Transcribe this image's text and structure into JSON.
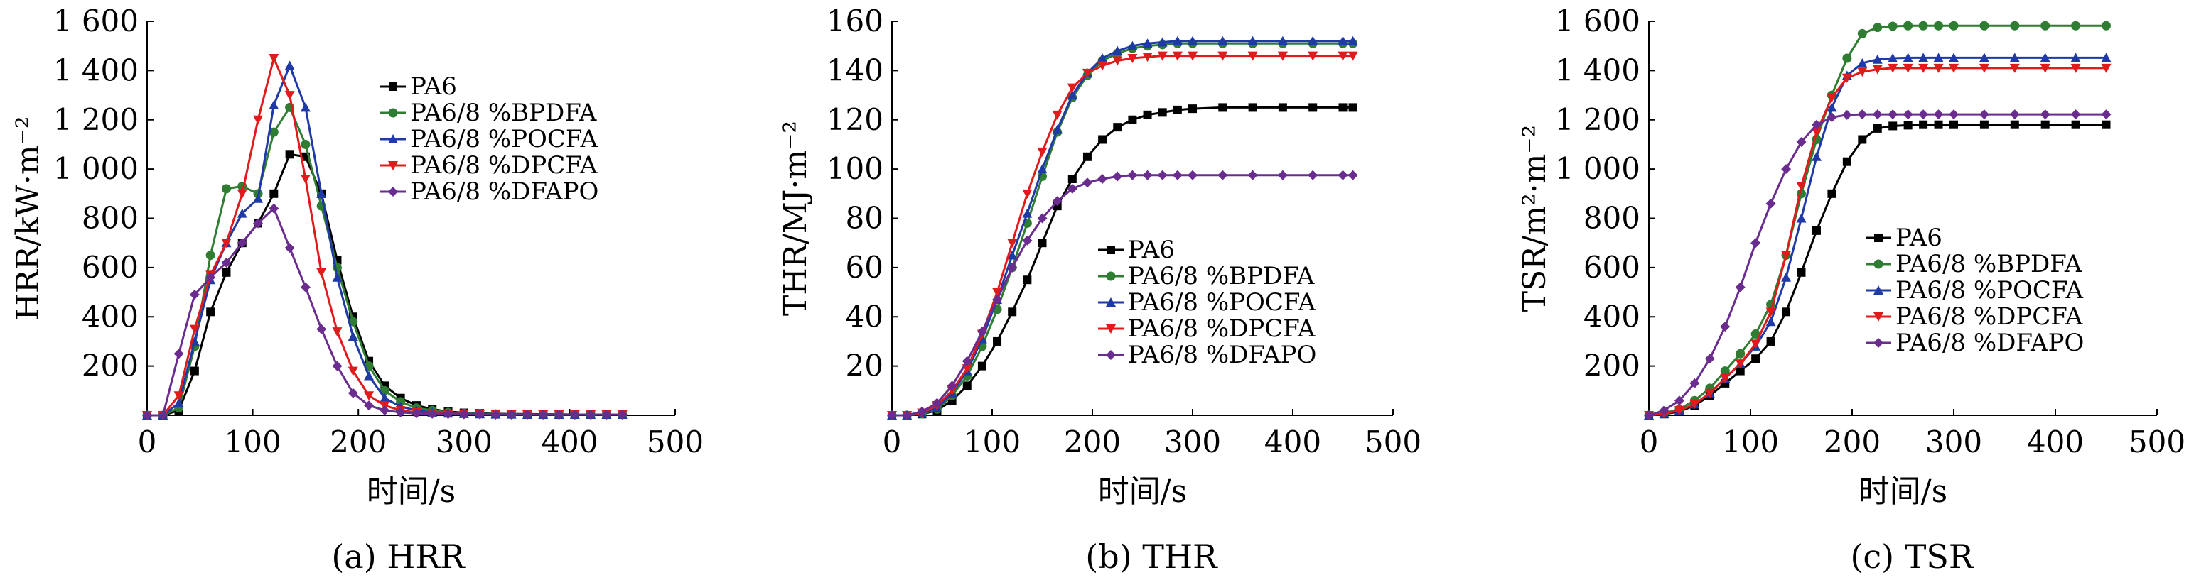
{
  "colors": {
    "PA6": "#000000",
    "BPDFA": "#2e7d32",
    "POCFA": "#1f3aa6",
    "DPCFA": "#e11b1b",
    "DFAPO": "#6a2c8f"
  },
  "chart_data": [
    {
      "type": "line",
      "caption": "(a) HRR",
      "xlabel": "时间/s",
      "ylabel": "HRR/kW·m⁻²",
      "xlim": [
        0,
        500
      ],
      "ylim": [
        0,
        1600
      ],
      "xticks": [
        0,
        100,
        200,
        300,
        400,
        500
      ],
      "xtick_labels": [
        "0",
        "100",
        "200",
        "300",
        "400",
        "500"
      ],
      "yticks": [
        200,
        400,
        600,
        800,
        1000,
        1200,
        1400,
        1600
      ],
      "ytick_labels": [
        "200",
        "400",
        "600",
        "800",
        "1 000",
        "1 200",
        "1 400",
        "1 600"
      ],
      "legend": "upper-right",
      "series": [
        {
          "name": "PA6",
          "marker": "square",
          "color_key": "PA6",
          "x": [
            0,
            15,
            30,
            45,
            60,
            75,
            90,
            105,
            120,
            135,
            150,
            165,
            180,
            195,
            210,
            225,
            240,
            255,
            270,
            285,
            300,
            315,
            330,
            345,
            360,
            375,
            390,
            405,
            420,
            435,
            450
          ],
          "y": [
            0,
            0,
            20,
            180,
            420,
            580,
            700,
            780,
            900,
            1060,
            1050,
            900,
            630,
            400,
            220,
            120,
            70,
            40,
            25,
            15,
            10,
            8,
            6,
            5,
            5,
            4,
            4,
            3,
            3,
            3,
            3
          ]
        },
        {
          "name": "PA6/8 %BPDFA",
          "marker": "circle",
          "color_key": "BPDFA",
          "x": [
            0,
            15,
            30,
            45,
            60,
            75,
            90,
            105,
            120,
            135,
            150,
            165,
            180,
            195,
            210,
            225,
            240,
            255,
            270,
            285,
            300,
            315,
            330,
            345,
            360,
            375,
            390,
            405,
            420,
            435,
            450
          ],
          "y": [
            0,
            0,
            30,
            280,
            650,
            920,
            930,
            900,
            1150,
            1250,
            1100,
            850,
            600,
            380,
            200,
            100,
            55,
            30,
            20,
            12,
            8,
            6,
            5,
            4,
            4,
            3,
            3,
            3,
            3,
            3,
            3
          ]
        },
        {
          "name": "PA6/8 %POCFA",
          "marker": "triangle",
          "color_key": "POCFA",
          "x": [
            0,
            15,
            30,
            45,
            60,
            75,
            90,
            105,
            120,
            135,
            150,
            165,
            180,
            195,
            210,
            225,
            240,
            255,
            270,
            285,
            300,
            315,
            330,
            345,
            360,
            375,
            390,
            405,
            420,
            435,
            450
          ],
          "y": [
            0,
            0,
            50,
            300,
            550,
            700,
            820,
            880,
            1260,
            1420,
            1250,
            900,
            560,
            320,
            160,
            70,
            35,
            20,
            12,
            8,
            6,
            5,
            4,
            4,
            3,
            3,
            3,
            3,
            3,
            3,
            3
          ]
        },
        {
          "name": "PA6/8 %DPCFA",
          "marker": "triangle-down",
          "color_key": "DPCFA",
          "x": [
            0,
            15,
            30,
            45,
            60,
            75,
            90,
            105,
            120,
            135,
            150,
            165,
            180,
            195,
            210,
            225,
            240,
            255,
            270,
            285,
            300,
            315,
            330,
            345,
            360,
            375,
            390,
            405,
            420,
            435,
            450
          ],
          "y": [
            0,
            0,
            80,
            350,
            570,
            700,
            900,
            1200,
            1450,
            1300,
            960,
            580,
            340,
            180,
            80,
            40,
            20,
            12,
            8,
            6,
            5,
            4,
            4,
            3,
            3,
            3,
            3,
            3,
            3,
            3,
            3
          ]
        },
        {
          "name": "PA6/8 %DFAPO",
          "marker": "diamond",
          "color_key": "DFAPO",
          "x": [
            0,
            15,
            30,
            45,
            60,
            75,
            90,
            105,
            120,
            135,
            150,
            165,
            180,
            195,
            210,
            225,
            240,
            255,
            270,
            285,
            300,
            315,
            330,
            345,
            360,
            375,
            390,
            405,
            420,
            435,
            450
          ],
          "y": [
            0,
            0,
            250,
            490,
            560,
            620,
            700,
            780,
            840,
            680,
            520,
            350,
            200,
            90,
            40,
            20,
            12,
            8,
            6,
            5,
            4,
            4,
            3,
            3,
            3,
            3,
            3,
            3,
            3,
            3,
            3
          ]
        }
      ]
    },
    {
      "type": "line",
      "caption": "(b) THR",
      "xlabel": "时间/s",
      "ylabel": "THR/MJ·m⁻²",
      "xlim": [
        0,
        500
      ],
      "ylim": [
        0,
        160
      ],
      "xticks": [
        0,
        100,
        200,
        300,
        400,
        500
      ],
      "xtick_labels": [
        "0",
        "100",
        "200",
        "300",
        "400",
        "500"
      ],
      "yticks": [
        20,
        40,
        60,
        80,
        100,
        120,
        140,
        160
      ],
      "ytick_labels": [
        "20",
        "40",
        "60",
        "80",
        "100",
        "120",
        "140",
        "160"
      ],
      "legend": "lower-right",
      "series": [
        {
          "name": "PA6",
          "marker": "square",
          "color_key": "PA6",
          "x": [
            0,
            15,
            30,
            45,
            60,
            75,
            90,
            105,
            120,
            135,
            150,
            165,
            180,
            195,
            210,
            225,
            240,
            255,
            270,
            285,
            300,
            330,
            360,
            390,
            420,
            450,
            460
          ],
          "y": [
            0,
            0,
            0.5,
            2,
            6,
            12,
            20,
            30,
            42,
            55,
            70,
            85,
            96,
            105,
            112,
            117,
            120,
            122,
            123,
            124,
            124.5,
            125,
            125,
            125,
            125,
            125,
            125
          ]
        },
        {
          "name": "PA6/8 %BPDFA",
          "marker": "circle",
          "color_key": "BPDFA",
          "x": [
            0,
            15,
            30,
            45,
            60,
            75,
            90,
            105,
            120,
            135,
            150,
            165,
            180,
            195,
            210,
            225,
            240,
            255,
            270,
            285,
            300,
            330,
            360,
            390,
            420,
            450,
            460
          ],
          "y": [
            0,
            0,
            0.6,
            2.5,
            8,
            16,
            28,
            43,
            60,
            78,
            97,
            115,
            129,
            138,
            144,
            147,
            149,
            150,
            150.5,
            151,
            151,
            151,
            151,
            151,
            151,
            151,
            151
          ]
        },
        {
          "name": "PA6/8 %POCFA",
          "marker": "triangle",
          "color_key": "POCFA",
          "x": [
            0,
            15,
            30,
            45,
            60,
            75,
            90,
            105,
            120,
            135,
            150,
            165,
            180,
            195,
            210,
            225,
            240,
            255,
            270,
            285,
            300,
            330,
            360,
            390,
            420,
            450,
            460
          ],
          "y": [
            0,
            0,
            0.8,
            3,
            9,
            18,
            31,
            47,
            65,
            82,
            100,
            116,
            130,
            139,
            145,
            148,
            150,
            151,
            151.5,
            152,
            152,
            152,
            152,
            152,
            152,
            152,
            152
          ]
        },
        {
          "name": "PA6/8 %DPCFA",
          "marker": "triangle-down",
          "color_key": "DPCFA",
          "x": [
            0,
            15,
            30,
            45,
            60,
            75,
            90,
            105,
            120,
            135,
            150,
            165,
            180,
            195,
            210,
            225,
            240,
            255,
            270,
            285,
            300,
            330,
            360,
            390,
            420,
            450,
            460
          ],
          "y": [
            0,
            0,
            1,
            4,
            10,
            19,
            33,
            50,
            70,
            90,
            107,
            122,
            133,
            139,
            142,
            144,
            145,
            145.5,
            146,
            146,
            146,
            146,
            146,
            146,
            146,
            146,
            146
          ]
        },
        {
          "name": "PA6/8 %DFAPO",
          "marker": "diamond",
          "color_key": "DFAPO",
          "x": [
            0,
            15,
            30,
            45,
            60,
            75,
            90,
            105,
            120,
            135,
            150,
            165,
            180,
            195,
            210,
            225,
            240,
            255,
            270,
            285,
            300,
            330,
            360,
            390,
            420,
            450,
            460
          ],
          "y": [
            0,
            0,
            1.5,
            5,
            12,
            22,
            34,
            47,
            60,
            71,
            80,
            87,
            92,
            94.5,
            96,
            97,
            97.5,
            97.5,
            97.5,
            97.5,
            97.5,
            97.5,
            97.5,
            97.5,
            97.5,
            97.5,
            97.5
          ]
        }
      ]
    },
    {
      "type": "line",
      "caption": "(c) TSR",
      "xlabel": "时间/s",
      "ylabel": "TSR/m²·m⁻²",
      "xlim": [
        0,
        500
      ],
      "ylim": [
        0,
        1600
      ],
      "xticks": [
        0,
        100,
        200,
        300,
        400,
        500
      ],
      "xtick_labels": [
        "0",
        "100",
        "200",
        "300",
        "400",
        "500"
      ],
      "yticks": [
        200,
        400,
        600,
        800,
        1000,
        1200,
        1400,
        1600
      ],
      "ytick_labels": [
        "200",
        "400",
        "600",
        "800",
        "1 000",
        "1 200",
        "1 400",
        "1 600"
      ],
      "legend": "lower-right",
      "series": [
        {
          "name": "PA6",
          "marker": "square",
          "color_key": "PA6",
          "x": [
            0,
            15,
            30,
            45,
            60,
            75,
            90,
            105,
            120,
            135,
            150,
            165,
            180,
            195,
            210,
            225,
            240,
            255,
            270,
            285,
            300,
            330,
            360,
            390,
            420,
            450
          ],
          "y": [
            0,
            5,
            15,
            40,
            80,
            130,
            180,
            230,
            300,
            420,
            580,
            750,
            900,
            1030,
            1120,
            1165,
            1175,
            1178,
            1180,
            1180,
            1180,
            1180,
            1180,
            1180,
            1180,
            1180
          ]
        },
        {
          "name": "PA6/8 %BPDFA",
          "marker": "circle",
          "color_key": "BPDFA",
          "x": [
            0,
            15,
            30,
            45,
            60,
            75,
            90,
            105,
            120,
            135,
            150,
            165,
            180,
            195,
            210,
            225,
            240,
            255,
            270,
            285,
            300,
            330,
            360,
            390,
            420,
            450
          ],
          "y": [
            0,
            8,
            25,
            60,
            110,
            180,
            250,
            330,
            450,
            650,
            900,
            1120,
            1300,
            1450,
            1550,
            1575,
            1580,
            1582,
            1582,
            1582,
            1582,
            1582,
            1582,
            1582,
            1582,
            1582
          ]
        },
        {
          "name": "PA6/8 %POCFA",
          "marker": "triangle",
          "color_key": "POCFA",
          "x": [
            0,
            15,
            30,
            45,
            60,
            75,
            90,
            105,
            120,
            135,
            150,
            165,
            180,
            195,
            210,
            225,
            240,
            255,
            270,
            285,
            300,
            330,
            360,
            390,
            420,
            450
          ],
          "y": [
            0,
            6,
            20,
            45,
            90,
            150,
            210,
            280,
            380,
            560,
            800,
            1050,
            1250,
            1380,
            1430,
            1445,
            1450,
            1452,
            1452,
            1452,
            1452,
            1452,
            1452,
            1452,
            1452,
            1452
          ]
        },
        {
          "name": "PA6/8 %DPCFA",
          "marker": "triangle-down",
          "color_key": "DPCFA",
          "x": [
            0,
            15,
            30,
            45,
            60,
            75,
            90,
            105,
            120,
            135,
            150,
            165,
            180,
            195,
            210,
            225,
            240,
            255,
            270,
            285,
            300,
            330,
            360,
            390,
            420,
            450
          ],
          "y": [
            0,
            6,
            20,
            45,
            90,
            150,
            210,
            290,
            420,
            650,
            930,
            1150,
            1290,
            1370,
            1395,
            1405,
            1410,
            1410,
            1410,
            1410,
            1410,
            1410,
            1410,
            1410,
            1410,
            1410
          ]
        },
        {
          "name": "PA6/8 %DFAPO",
          "marker": "diamond",
          "color_key": "DFAPO",
          "x": [
            0,
            15,
            30,
            45,
            60,
            75,
            90,
            105,
            120,
            135,
            150,
            165,
            180,
            195,
            210,
            225,
            240,
            255,
            270,
            285,
            300,
            330,
            360,
            390,
            420,
            450
          ],
          "y": [
            0,
            20,
            60,
            130,
            230,
            360,
            520,
            700,
            860,
            1000,
            1110,
            1180,
            1210,
            1220,
            1222,
            1222,
            1222,
            1222,
            1222,
            1222,
            1222,
            1222,
            1222,
            1222,
            1222,
            1222
          ]
        }
      ]
    }
  ]
}
